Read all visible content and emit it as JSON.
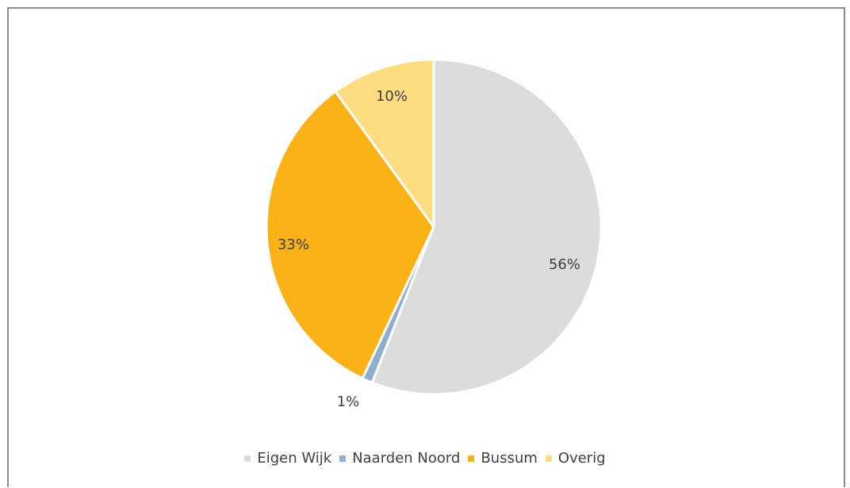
{
  "chart_data": {
    "type": "pie",
    "start_angle_deg": 0,
    "direction": "clockwise",
    "slices": [
      {
        "name": "Eigen Wijk",
        "value": 56,
        "label": "56%",
        "color": "#dcdcdc"
      },
      {
        "name": "Naarden Noord",
        "value": 1,
        "label": "1%",
        "color": "#8eaed0"
      },
      {
        "name": "Bussum",
        "value": 33,
        "label": "33%",
        "color": "#fbb217"
      },
      {
        "name": "Overig",
        "value": 10,
        "label": "10%",
        "color": "#ffdc7f"
      }
    ],
    "legend_position": "bottom"
  }
}
